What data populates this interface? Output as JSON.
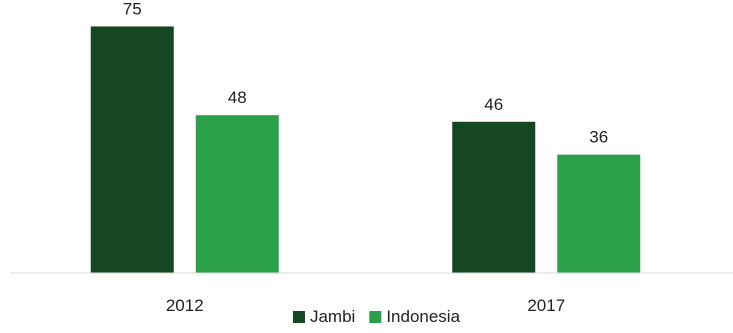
{
  "chart_data": {
    "type": "bar",
    "categories": [
      "2012",
      "2017"
    ],
    "series": [
      {
        "name": "Jambi",
        "values": [
          75,
          46
        ],
        "color": "#144722"
      },
      {
        "name": "Indonesia",
        "values": [
          48,
          36
        ],
        "color": "#2aa04a"
      }
    ],
    "title": "",
    "xlabel": "",
    "ylabel": "",
    "ylim": [
      0,
      80
    ],
    "grid": false,
    "legend_position": "bottom-center",
    "axis_color": "#d9d9d9"
  }
}
